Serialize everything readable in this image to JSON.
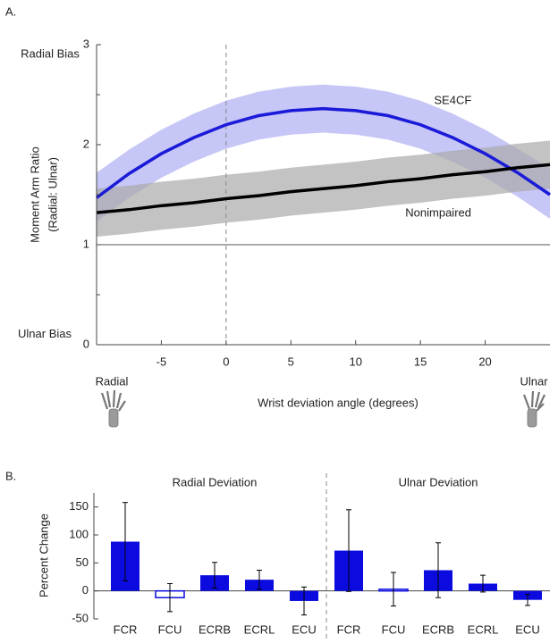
{
  "chart_data": [
    {
      "type": "line",
      "panel_label": "A.",
      "xlabel": "Wrist deviation angle (degrees)",
      "ylabel": [
        "Moment Arm Ratio",
        "(Radial: Ulnar)"
      ],
      "annotations": {
        "radial_bias": "Radial Bias",
        "ulnar_bias": "Ulnar Bias",
        "radial": "Radial",
        "ulnar": "Ulnar"
      },
      "x": [
        -10,
        -7.5,
        -5,
        -2.5,
        0,
        2.5,
        5,
        7.5,
        10,
        12.5,
        15,
        17.5,
        20,
        22.5,
        25
      ],
      "xlim": [
        -10,
        25
      ],
      "xticks": [
        -5,
        0,
        5,
        10,
        15,
        20
      ],
      "ylim": [
        0,
        3
      ],
      "yticks": [
        0,
        1,
        2,
        3
      ],
      "reference_lines": {
        "y": 1,
        "x": 0
      },
      "series": [
        {
          "name": "SE4CF",
          "color": "#1a1ad9",
          "band_color": "#aeaef4",
          "values": [
            1.47,
            1.71,
            1.91,
            2.07,
            2.2,
            2.29,
            2.34,
            2.36,
            2.34,
            2.29,
            2.2,
            2.07,
            1.91,
            1.72,
            1.5
          ],
          "upper": [
            1.72,
            1.95,
            2.15,
            2.31,
            2.44,
            2.53,
            2.58,
            2.6,
            2.58,
            2.53,
            2.44,
            2.31,
            2.15,
            1.96,
            1.76
          ],
          "lower": [
            1.23,
            1.47,
            1.67,
            1.83,
            1.96,
            2.05,
            2.1,
            2.12,
            2.1,
            2.05,
            1.96,
            1.83,
            1.67,
            1.48,
            1.26
          ]
        },
        {
          "name": "Nonimpaired",
          "color": "#000000",
          "band_color": "#a9a9a9",
          "values": [
            1.32,
            1.35,
            1.39,
            1.42,
            1.46,
            1.49,
            1.53,
            1.56,
            1.59,
            1.63,
            1.66,
            1.7,
            1.73,
            1.77,
            1.8
          ],
          "upper": [
            1.56,
            1.59,
            1.63,
            1.66,
            1.7,
            1.73,
            1.77,
            1.8,
            1.83,
            1.87,
            1.9,
            1.94,
            1.97,
            2.01,
            2.04
          ],
          "lower": [
            1.08,
            1.11,
            1.15,
            1.18,
            1.22,
            1.25,
            1.29,
            1.32,
            1.35,
            1.39,
            1.42,
            1.46,
            1.49,
            1.53,
            1.56
          ]
        }
      ]
    },
    {
      "type": "bar",
      "panel_label": "B.",
      "ylabel": "Percent Change",
      "color": "#0b0be0",
      "ylim": [
        -50,
        175
      ],
      "yticks": [
        -50,
        0,
        50,
        100,
        150
      ],
      "groups": [
        {
          "name": "Radial Deviation",
          "categories": [
            "FCR",
            "FCU",
            "ECRB",
            "ECRL",
            "ECU"
          ],
          "values": [
            88,
            -12,
            28,
            20,
            -18
          ],
          "errors": [
            70,
            25,
            23,
            17,
            25
          ],
          "filled": [
            true,
            false,
            true,
            true,
            true
          ]
        },
        {
          "name": "Ulnar Deviation",
          "categories": [
            "FCR",
            "FCU",
            "ECRB",
            "ECRL",
            "ECU"
          ],
          "values": [
            72,
            3,
            37,
            13,
            -16
          ],
          "errors": [
            73,
            30,
            49,
            15,
            10
          ],
          "filled": [
            true,
            false,
            true,
            true,
            true
          ]
        }
      ]
    }
  ]
}
